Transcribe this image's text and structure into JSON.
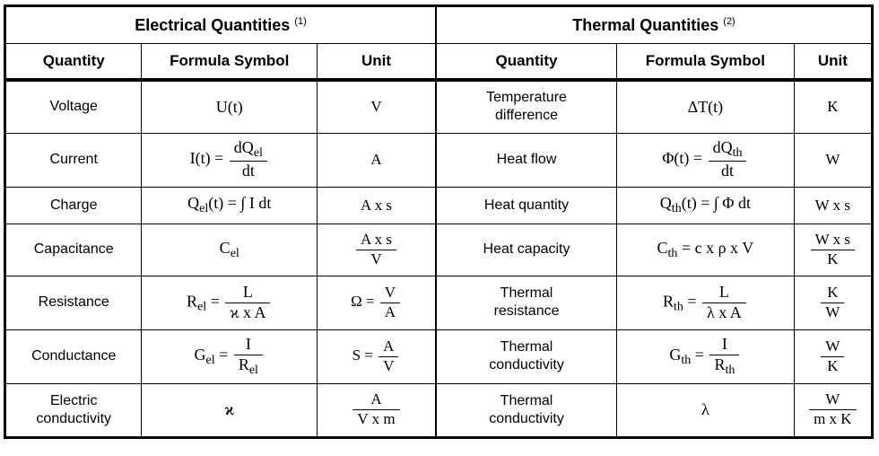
{
  "colors": {
    "background": "#ffffff",
    "text": "#000000",
    "border": "#000000"
  },
  "header": {
    "groups": [
      {
        "title": "Electrical Quantities",
        "footnote": "(1)"
      },
      {
        "title": "Thermal Quantities",
        "footnote": "(2)"
      }
    ],
    "columns": [
      "Quantity",
      "Formula Symbol",
      "Unit"
    ]
  },
  "rows": [
    {
      "el": {
        "quantity": "Voltage",
        "formula": [
          "U(t)"
        ],
        "unit": [
          "V"
        ]
      },
      "th": {
        "quantity": "Temperature\ndifference",
        "formula": [
          "ΔT(t)"
        ],
        "unit": [
          "K"
        ]
      }
    },
    {
      "el": {
        "quantity": "Current",
        "formula": [
          "I(t) = ",
          {
            "frac": [
              [
                "dQ",
                {
                  "sub": "el"
                }
              ],
              [
                "dt"
              ]
            ]
          }
        ],
        "unit": [
          "A"
        ]
      },
      "th": {
        "quantity": "Heat flow",
        "formula": [
          "Φ(t) = ",
          {
            "frac": [
              [
                "dQ",
                {
                  "sub": "th"
                }
              ],
              [
                "dt"
              ]
            ]
          }
        ],
        "unit": [
          "W"
        ]
      }
    },
    {
      "el": {
        "quantity": "Charge",
        "formula": [
          "Q",
          {
            "sub": "el"
          },
          "(t) = ∫ I dt"
        ],
        "unit": [
          "A x s"
        ]
      },
      "th": {
        "quantity": "Heat quantity",
        "formula": [
          "Q",
          {
            "sub": "th"
          },
          "(t) = ∫ Φ dt"
        ],
        "unit": [
          "W x s"
        ]
      }
    },
    {
      "el": {
        "quantity": "Capacitance",
        "formula": [
          "C",
          {
            "sub": "el"
          }
        ],
        "unit": [
          {
            "frac": [
              [
                "A x s"
              ],
              [
                "V"
              ]
            ]
          }
        ]
      },
      "th": {
        "quantity": "Heat capacity",
        "formula": [
          "C",
          {
            "sub": "th"
          },
          " = c x ρ x V"
        ],
        "unit": [
          {
            "frac": [
              [
                "W x s"
              ],
              [
                "K"
              ]
            ]
          }
        ]
      }
    },
    {
      "el": {
        "quantity": "Resistance",
        "formula": [
          "R",
          {
            "sub": "el"
          },
          " = ",
          {
            "frac": [
              [
                "L"
              ],
              [
                "ϰ x A"
              ]
            ]
          }
        ],
        "unit": [
          "Ω = ",
          {
            "frac": [
              [
                "V"
              ],
              [
                "A"
              ]
            ]
          }
        ]
      },
      "th": {
        "quantity": "Thermal\nresistance",
        "formula": [
          "R",
          {
            "sub": "th"
          },
          " = ",
          {
            "frac": [
              [
                "L"
              ],
              [
                "λ x A"
              ]
            ]
          }
        ],
        "unit": [
          {
            "frac": [
              [
                "K"
              ],
              [
                "W"
              ]
            ]
          }
        ]
      }
    },
    {
      "el": {
        "quantity": "Conductance",
        "formula": [
          "G",
          {
            "sub": "el"
          },
          " = ",
          {
            "frac": [
              [
                "I"
              ],
              [
                "R",
                {
                  "sub": "el"
                }
              ]
            ]
          }
        ],
        "unit": [
          "S = ",
          {
            "frac": [
              [
                "A"
              ],
              [
                "V"
              ]
            ]
          }
        ]
      },
      "th": {
        "quantity": "Thermal\nconductivity",
        "formula": [
          "G",
          {
            "sub": "th"
          },
          " = ",
          {
            "frac": [
              [
                "I"
              ],
              [
                "R",
                {
                  "sub": "th"
                }
              ]
            ]
          }
        ],
        "unit": [
          {
            "frac": [
              [
                "W"
              ],
              [
                "K"
              ]
            ]
          }
        ]
      }
    },
    {
      "el": {
        "quantity": "Electric\nconductivity",
        "formula": [
          {
            "b": "ϰ"
          }
        ],
        "unit": [
          {
            "frac": [
              [
                "A"
              ],
              [
                "V x m"
              ]
            ]
          }
        ]
      },
      "th": {
        "quantity": "Thermal\nconductivity",
        "formula": [
          "λ"
        ],
        "unit": [
          {
            "frac": [
              [
                "W"
              ],
              [
                "m x K"
              ]
            ]
          }
        ]
      }
    }
  ]
}
